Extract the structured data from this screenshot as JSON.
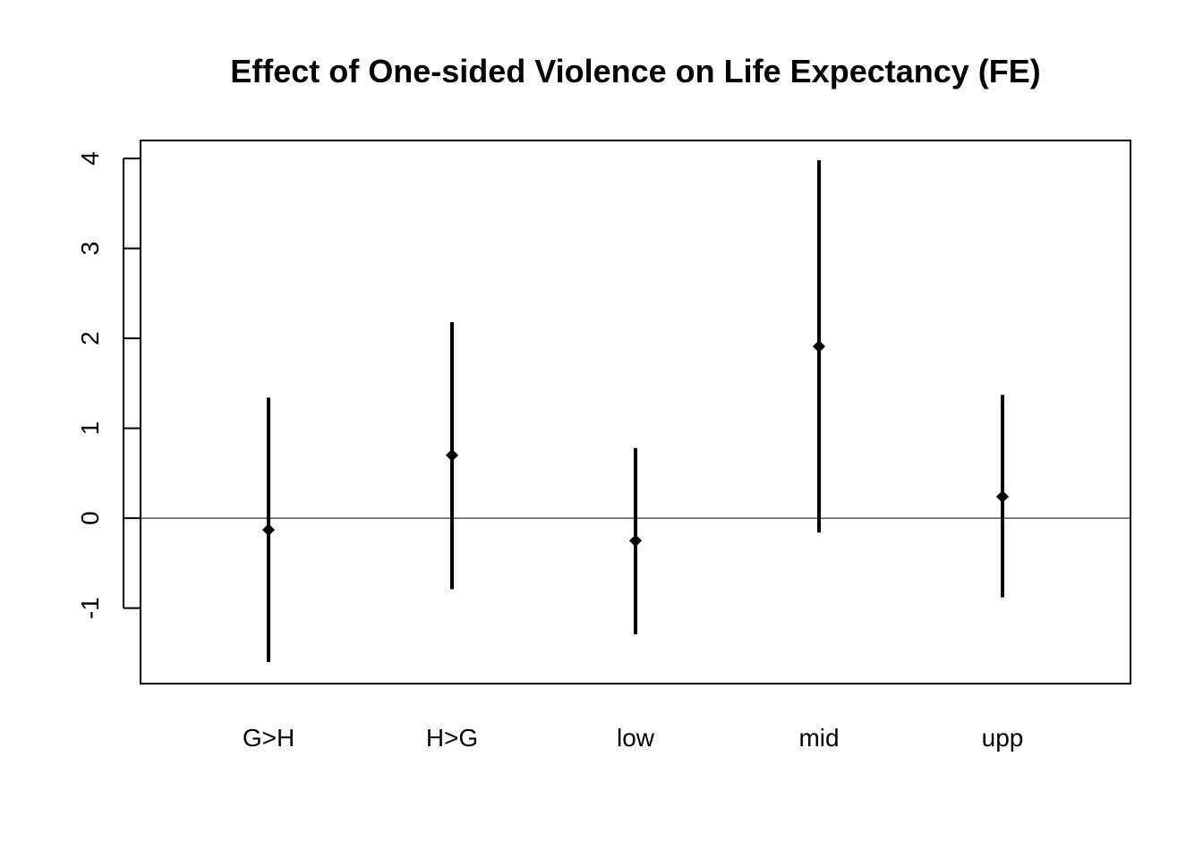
{
  "chart_data": {
    "type": "errorbar",
    "title": "Effect of One-sided Violence on Life Expectancy (FE)",
    "xlabel": "",
    "ylabel": "",
    "categories": [
      "G>H",
      "H>G",
      "low",
      "mid",
      "upp"
    ],
    "estimates": [
      -0.13,
      0.7,
      -0.25,
      1.91,
      0.24
    ],
    "lower": [
      -1.6,
      -0.79,
      -1.29,
      -0.16,
      -0.88
    ],
    "upper": [
      1.34,
      2.18,
      0.78,
      3.98,
      1.37
    ],
    "ylim": [
      -1.84,
      4.2
    ],
    "yticks": [
      -1,
      0,
      1,
      2,
      3,
      4
    ],
    "reference_line": 0,
    "grid": false,
    "colors": {
      "marks": "#000000",
      "frame": "#000000"
    }
  }
}
